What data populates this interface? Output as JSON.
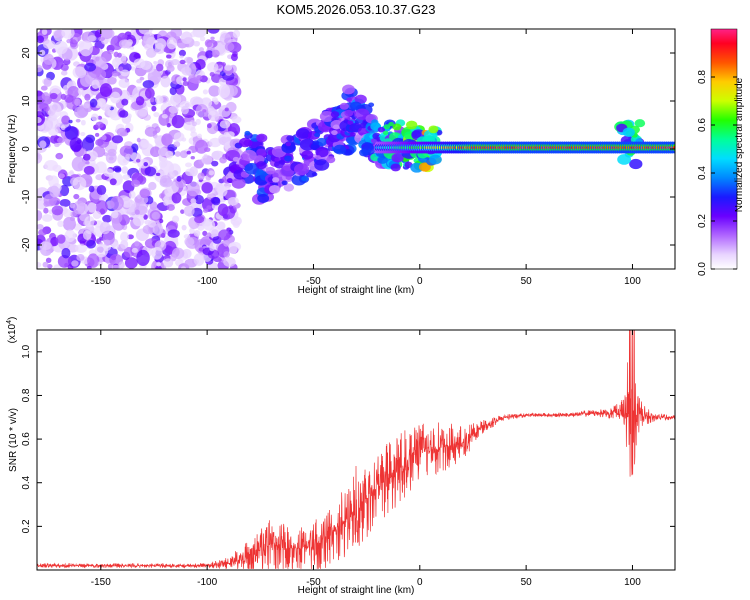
{
  "chart_data": [
    {
      "type": "heatmap",
      "title": "KOM5.2026.053.10.37.G23",
      "xlabel": "Height of straight line (km)",
      "ylabel": "Frequency (Hz)",
      "xlim": [
        -180,
        120
      ],
      "ylim": [
        -25,
        25
      ],
      "xticks": [
        -150,
        -100,
        -50,
        0,
        50,
        100
      ],
      "xtick_labels": [
        "-150",
        "-100",
        "-50",
        "0",
        "50",
        "100"
      ],
      "yticks": [
        -20,
        -10,
        0,
        10,
        20
      ],
      "ytick_labels": [
        "-20",
        "-10",
        "0",
        "10",
        "20"
      ],
      "colorbar": {
        "label": "Normalized spectral amplitude",
        "range": [
          0,
          1
        ],
        "ticks": [
          0.0,
          0.2,
          0.4,
          0.6,
          0.8
        ],
        "tick_labels": [
          "0.0",
          "0.2",
          "0.4",
          "0.6",
          "0.8"
        ],
        "colormap": [
          "#ffffff",
          "#cc99ff",
          "#8800ff",
          "#2200ff",
          "#00aaff",
          "#00ffcc",
          "#00ff00",
          "#aaff00",
          "#ffcc00",
          "#ff6600",
          "#ff0000",
          "#ff0088"
        ]
      },
      "features": {
        "noise_region_x": [
          -180,
          -92
        ],
        "bursts": [
          {
            "x": -85,
            "f": -3,
            "a": 0.25
          },
          {
            "x": -78,
            "f": -1,
            "a": 0.3
          },
          {
            "x": -72,
            "f": -6,
            "a": 0.3
          },
          {
            "x": -66,
            "f": -4,
            "a": 0.25
          },
          {
            "x": -58,
            "f": -2,
            "a": 0.3
          },
          {
            "x": -52,
            "f": -1,
            "a": 0.25
          },
          {
            "x": -46,
            "f": 1,
            "a": 0.3
          },
          {
            "x": -40,
            "f": 4,
            "a": 0.35
          },
          {
            "x": -36,
            "f": 3,
            "a": 0.3
          },
          {
            "x": -31,
            "f": 8,
            "a": 0.35
          },
          {
            "x": -27,
            "f": 5,
            "a": 0.3
          },
          {
            "x": -22,
            "f": 2,
            "a": 0.4
          },
          {
            "x": -17,
            "f": 1,
            "a": 0.45
          },
          {
            "x": -12,
            "f": 1,
            "a": 0.5
          },
          {
            "x": -7,
            "f": 0.5,
            "a": 0.55
          },
          {
            "x": -2,
            "f": 0.5,
            "a": 0.6
          },
          {
            "x": 5,
            "f": 0.5,
            "a": 0.7
          },
          {
            "x": 99,
            "f": 1,
            "a": 0.5
          }
        ],
        "carrier": {
          "f": 0.3,
          "x_start": -20,
          "x_end": 120,
          "peak": 1.0
        }
      }
    },
    {
      "type": "line",
      "title": "",
      "xlabel": "Height of straight line (km)",
      "ylabel": "SNR (10 * v/v)",
      "y_scale_label": "(x10",
      "y_scale_exponent": "4",
      "y_scale_suffix": ")",
      "xlim": [
        -180,
        120
      ],
      "ylim": [
        0,
        1.1
      ],
      "xticks": [
        -150,
        -100,
        -50,
        0,
        50,
        100
      ],
      "xtick_labels": [
        "-150",
        "-100",
        "-50",
        "0",
        "50",
        "100"
      ],
      "yticks": [
        0.2,
        0.4,
        0.6,
        0.8,
        1.0
      ],
      "ytick_labels": [
        "0.2",
        "0.4",
        "0.6",
        "0.8",
        "1.0"
      ],
      "color": "#ee3333",
      "envelope": {
        "x": [
          -180,
          -100,
          -90,
          -80,
          -70,
          -60,
          -50,
          -40,
          -30,
          -20,
          -10,
          0,
          10,
          20,
          30,
          40,
          50,
          60,
          70,
          80,
          90,
          95,
          98,
          100,
          102,
          105,
          110,
          120
        ],
        "base": [
          0.02,
          0.02,
          0.03,
          0.06,
          0.12,
          0.1,
          0.1,
          0.18,
          0.28,
          0.38,
          0.46,
          0.55,
          0.56,
          0.58,
          0.66,
          0.7,
          0.71,
          0.71,
          0.71,
          0.72,
          0.72,
          0.73,
          0.72,
          0.66,
          0.72,
          0.71,
          0.7,
          0.7
        ],
        "spread": [
          0.01,
          0.01,
          0.03,
          0.08,
          0.12,
          0.1,
          0.12,
          0.15,
          0.2,
          0.18,
          0.16,
          0.14,
          0.12,
          0.08,
          0.03,
          0.015,
          0.01,
          0.01,
          0.01,
          0.015,
          0.025,
          0.05,
          0.12,
          0.3,
          0.12,
          0.05,
          0.02,
          0.01
        ]
      }
    }
  ]
}
